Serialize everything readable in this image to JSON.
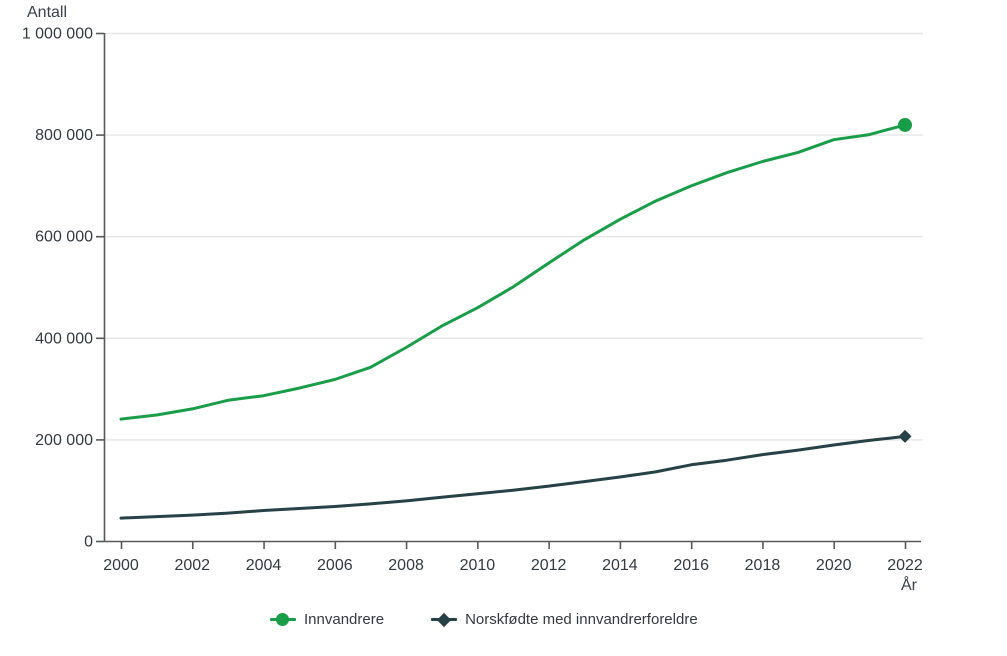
{
  "chart": {
    "y_axis_title": "Antall",
    "x_axis_title": "År"
  },
  "colors": {
    "series_green": "#1a9d49",
    "series_dark": "#274247",
    "axis_line": "#58595b",
    "grid_line": "#e6e6e6",
    "tick_text": "#333a40"
  },
  "legend": {
    "items": [
      {
        "label": "Innvandrere",
        "marker": "circle",
        "color": "#1a9d49"
      },
      {
        "label": "Norskfødte med innvandrerforeldre",
        "marker": "diamond",
        "color": "#274247"
      }
    ]
  },
  "chart_data": {
    "type": "line",
    "title": "",
    "xlabel": "År",
    "ylabel": "Antall",
    "grid": "horizontal gridlines on",
    "legend_position": "bottom",
    "ylim": [
      0,
      1000000
    ],
    "xlim": [
      2000,
      2022
    ],
    "y_ticks": [
      0,
      200000,
      400000,
      600000,
      800000,
      1000000
    ],
    "y_tick_labels": [
      "0",
      "200 000",
      "400 000",
      "600 000",
      "800 000",
      "1 000 000"
    ],
    "x_ticks": [
      2000,
      2002,
      2004,
      2006,
      2008,
      2010,
      2012,
      2014,
      2016,
      2018,
      2020,
      2022
    ],
    "x": [
      2000,
      2001,
      2002,
      2003,
      2004,
      2005,
      2006,
      2007,
      2008,
      2009,
      2010,
      2011,
      2012,
      2013,
      2014,
      2015,
      2016,
      2017,
      2018,
      2019,
      2020,
      2021,
      2022
    ],
    "series": [
      {
        "name": "Innvandrere",
        "color": "#1a9d49",
        "marker": "circle",
        "values": [
          240000,
          248000,
          260000,
          277000,
          286000,
          301000,
          318000,
          342000,
          381000,
          423000,
          459000,
          500000,
          547000,
          593000,
          633000,
          669000,
          699000,
          725000,
          747000,
          765000,
          790000,
          800000,
          819000
        ]
      },
      {
        "name": "Norskfødte med innvandrerforeldre",
        "color": "#274247",
        "marker": "diamond",
        "values": [
          45000,
          48000,
          51000,
          55000,
          60000,
          64000,
          68000,
          73000,
          79000,
          86000,
          93000,
          100000,
          108000,
          117000,
          126000,
          136000,
          150000,
          159000,
          170000,
          179000,
          189000,
          198000,
          206000
        ]
      }
    ]
  }
}
